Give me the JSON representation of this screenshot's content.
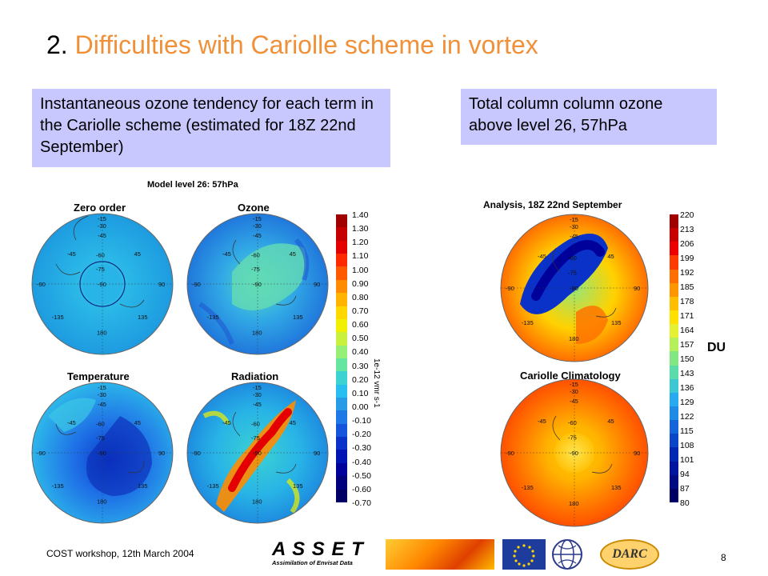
{
  "slide": {
    "title_number": "2.",
    "title_text": "Difficulties with Cariolle scheme in vortex",
    "page_number": "8",
    "footer": "COST workshop, 12th March 2004"
  },
  "notes": {
    "left": "Instantaneous ozone tendency for each term in the Cariolle scheme (estimated for 18Z 22nd September)",
    "right": "Total column column ozone above level 26, 57hPa"
  },
  "left_figure": {
    "header": "Model level 26: 57hPa",
    "maps": [
      "Zero order",
      "Ozone",
      "Temperature",
      "Radiation"
    ],
    "colorbar_unit": "1e-12 vmr s-1",
    "colorbar_labels": [
      "1.40",
      "1.30",
      "1.20",
      "1.10",
      "1.00",
      "0.90",
      "0.80",
      "0.70",
      "0.60",
      "0.50",
      "0.40",
      "0.30",
      "0.20",
      "0.10",
      "0.00",
      "-0.10",
      "-0.20",
      "-0.30",
      "-0.40",
      "-0.50",
      "-0.60",
      "-0.70"
    ],
    "colorbar_colors": [
      "#a00000",
      "#c40000",
      "#e40000",
      "#ff2a00",
      "#ff5a00",
      "#ff8c00",
      "#ffb400",
      "#ffd800",
      "#f0f000",
      "#c8f03c",
      "#96f078",
      "#64e6a0",
      "#3cd2d2",
      "#28bef0",
      "#289be6",
      "#1e78e6",
      "#1455dc",
      "#0a32c8",
      "#0014b4",
      "#00009b",
      "#00007d",
      "#000064"
    ],
    "map_ticks": {
      "lon_top": "-15",
      "lat1": "-30",
      "lat2": "-45",
      "lat3": "-60",
      "lat4": "-75",
      "left": "-45",
      "right": "45",
      "w": "-90",
      "mid": "-90",
      "e": "90",
      "sw": "-135",
      "se": "135",
      "bottom": "180"
    }
  },
  "right_figure": {
    "maps": [
      "Analysis, 18Z 22nd September",
      "Cariolle Climatology"
    ],
    "colorbar_unit": "DU",
    "colorbar_labels": [
      "220",
      "213",
      "206",
      "199",
      "192",
      "185",
      "178",
      "171",
      "164",
      "157",
      "150",
      "143",
      "136",
      "129",
      "122",
      "115",
      "108",
      "101",
      "94",
      "87",
      "80"
    ],
    "colorbar_colors": [
      "#a00000",
      "#c80000",
      "#ec0000",
      "#ff3c00",
      "#ff6e00",
      "#ff9600",
      "#ffbe00",
      "#ffe000",
      "#e6f032",
      "#b4f05a",
      "#82e682",
      "#5adcaa",
      "#3cc8d2",
      "#28aaf0",
      "#1e8ce6",
      "#1464dc",
      "#0a46c8",
      "#0028b4",
      "#0014a0",
      "#000a82",
      "#000064"
    ]
  },
  "logos": {
    "asset_title": "A S S E T",
    "asset_subtitle": "Assimilation of Envisat Data",
    "darc": "DARC"
  }
}
